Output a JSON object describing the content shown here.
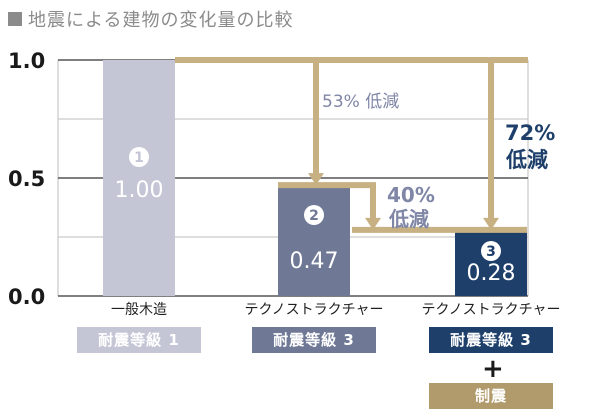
{
  "header": {
    "title": "地震による建物の変化量の比較"
  },
  "chart_data": {
    "type": "bar",
    "title": "地震による建物の変化量の比較",
    "ylim": [
      0,
      1.0
    ],
    "yticks": [
      "1.0",
      "0.5",
      "0.0"
    ],
    "ytick_values": [
      1.0,
      0.5,
      0.0
    ],
    "categories": [
      "一般木造",
      "テクノストラクチャー",
      "テクノストラクチャー"
    ],
    "values": [
      1.0,
      0.47,
      0.28
    ],
    "value_labels": [
      "1.00",
      "0.47",
      "0.28"
    ],
    "markers": [
      "1",
      "2",
      "3"
    ],
    "bar_colors": [
      "#c4c6d6",
      "#6f7895",
      "#1d3f6a"
    ],
    "grid": true,
    "annotations": [
      {
        "text": "53% 低減",
        "from": 1.0,
        "to": 0.47
      },
      {
        "text_lines": [
          "40%",
          "低減"
        ],
        "from": 0.47,
        "to": 0.28
      },
      {
        "text_lines": [
          "72%",
          "低減"
        ],
        "from": 1.0,
        "to": 0.28
      }
    ]
  },
  "badges": [
    {
      "label": "耐震等級 1",
      "color": "#c4c6d6"
    },
    {
      "label": "耐震等級 3",
      "color": "#6f7895"
    },
    {
      "label": "耐震等級 3",
      "color": "#1d3f6a"
    }
  ],
  "plus_sign": "+",
  "extra_badge": {
    "label": "制震",
    "color": "#b19b6c"
  },
  "colors": {
    "arrow": "#c7b183",
    "annotation_light": "#7f86a6",
    "annotation_dark": "#1d3f6a",
    "grid": "#bdbdbd"
  }
}
